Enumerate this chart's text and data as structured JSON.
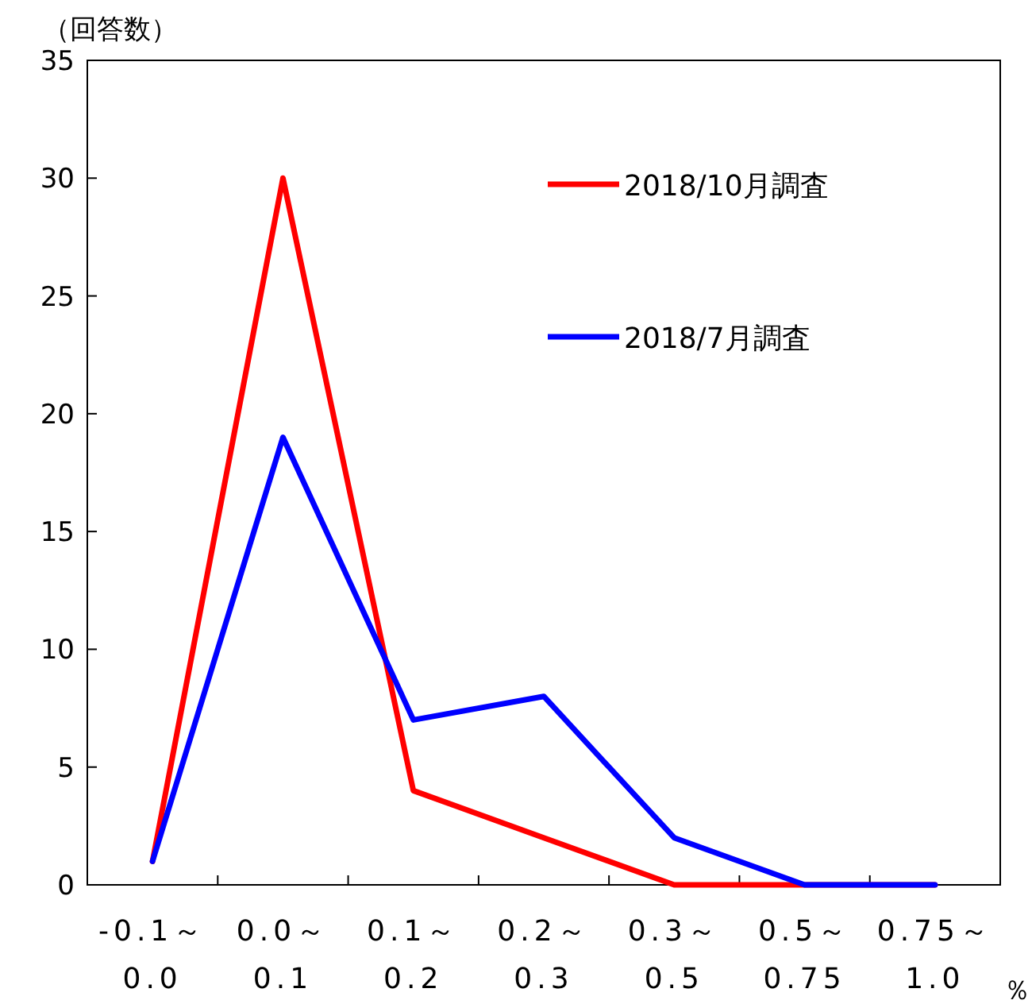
{
  "chart_data": {
    "type": "line",
    "ylabel": "（回答数）",
    "xlabel": "％",
    "categories": [
      "-0.1～0.0",
      "0.0～0.1",
      "0.1～0.2",
      "0.2～0.3",
      "0.3～0.5",
      "0.5～0.75",
      "0.75～1.0"
    ],
    "series": [
      {
        "name": "2018/10月調査",
        "color": "#ff0000",
        "values": [
          1,
          30,
          4,
          2,
          0,
          0,
          0
        ]
      },
      {
        "name": "2018/7月調査",
        "color": "#0000ff",
        "values": [
          1,
          19,
          7,
          8,
          2,
          0,
          0
        ]
      }
    ],
    "ylim": [
      0,
      35
    ],
    "yticks": [
      0,
      5,
      10,
      15,
      20,
      25,
      30,
      35
    ],
    "grid": false,
    "legend": "top right",
    "marker": "none"
  }
}
